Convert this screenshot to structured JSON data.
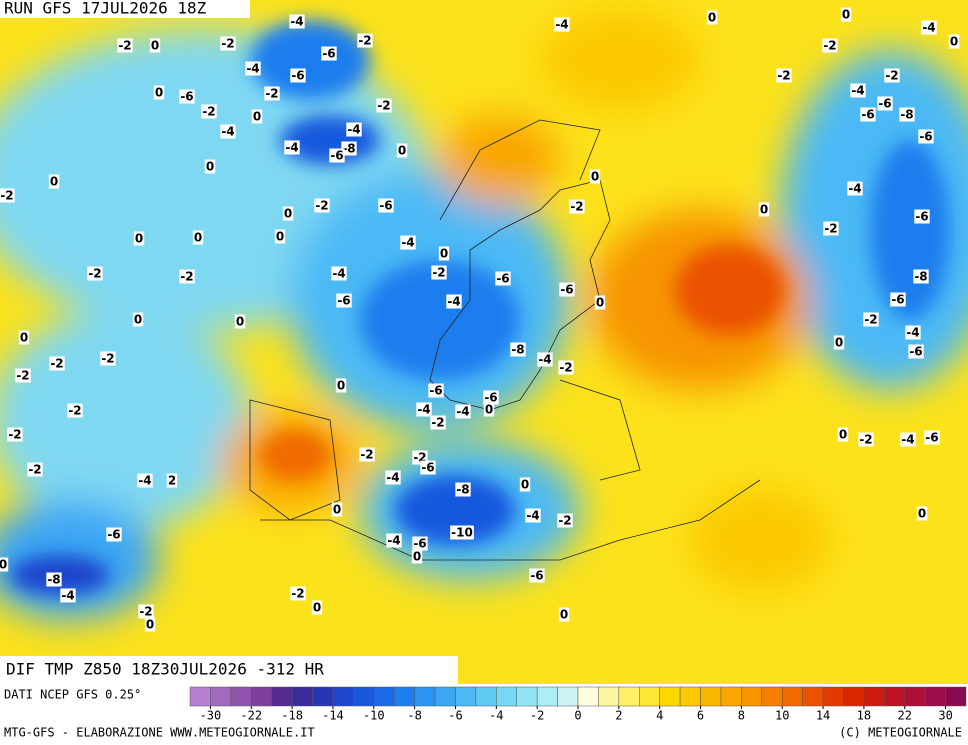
{
  "header": {
    "run": "RUN GFS 17JUL2026 18Z"
  },
  "map": {
    "title": "DIF TMP Z850 18Z30JUL2026 -312 HR",
    "contour_labels": [
      -4,
      -2,
      0,
      -2,
      -6,
      -2,
      -4,
      0,
      0,
      -4,
      -2,
      0,
      -4,
      -6,
      0,
      -6,
      -2,
      -2,
      -2,
      -2,
      -4,
      -6,
      -6,
      -8,
      -2,
      0,
      -4,
      -4,
      -8,
      -4,
      -6,
      0,
      -6,
      0,
      0,
      -2,
      0,
      -4,
      -2,
      -2,
      -6,
      0,
      0,
      -6,
      0,
      0,
      0,
      -4,
      0,
      -2,
      -2,
      -2,
      -4,
      -2,
      -6,
      -8,
      -6,
      -6,
      -4,
      0,
      -6,
      0,
      0,
      -2,
      -4,
      0,
      0,
      -6,
      -2,
      -2,
      -8,
      -4,
      -2,
      -2,
      0,
      -6,
      -2,
      -4,
      -4,
      -6,
      0,
      -2,
      -2,
      0,
      -2,
      -4,
      -6,
      -2,
      -2,
      -6,
      -2,
      -4,
      -4,
      2,
      -8,
      0,
      0,
      -4,
      -2,
      0,
      -6,
      -10,
      -4,
      -6,
      0,
      0,
      -6,
      -8,
      -4,
      -2,
      0,
      -2,
      0,
      0
    ]
  },
  "legend": {
    "source": "DATI NCEP GFS 0.25°",
    "colors": [
      "#b67fd0",
      "#a26abf",
      "#8f55ad",
      "#7c3f9c",
      "#5a2b8f",
      "#3a2a9a",
      "#2a35b5",
      "#1f45cc",
      "#1958dd",
      "#1a6ae6",
      "#1f7eee",
      "#2b93f2",
      "#3aa6f4",
      "#4cb9f5",
      "#5fcaf4",
      "#78d8f3",
      "#93e3f3",
      "#b0ecf4",
      "#ccf3f5",
      "#fffde0",
      "#fff6a0",
      "#fff066",
      "#ffe833",
      "#fdd800",
      "#fcc800",
      "#fbb800",
      "#f9a600",
      "#f79400",
      "#f47f00",
      "#f06a00",
      "#ea5200",
      "#e23a00",
      "#d82700",
      "#cc1a10",
      "#bd1224",
      "#ad0f38",
      "#9c0c48",
      "#8a0a52"
    ],
    "ticks": [
      -30,
      -22,
      -18,
      -14,
      -10,
      -8,
      -6,
      -4,
      -2,
      0,
      2,
      4,
      6,
      8,
      10,
      14,
      18,
      22,
      30
    ]
  },
  "footer": {
    "left": "MTG-GFS - ELABORAZIONE WWW.METEOGIORNALE.IT",
    "right": "(C) METEOGIORNALE"
  }
}
